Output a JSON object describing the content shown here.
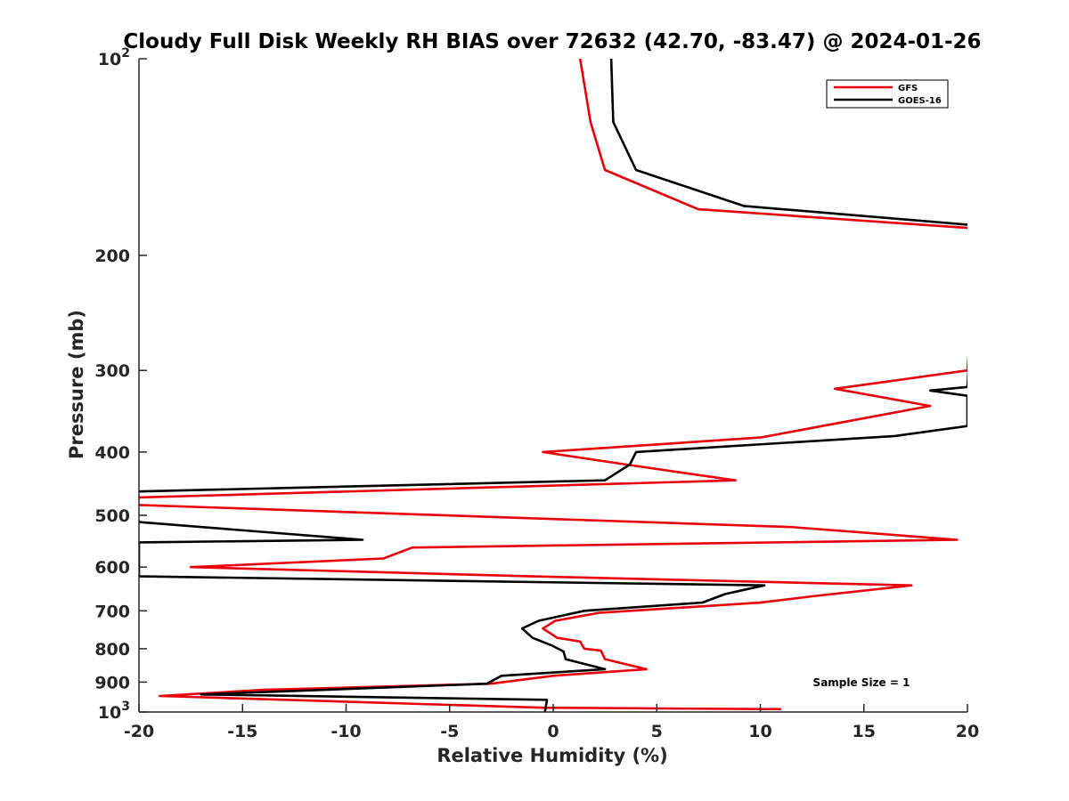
{
  "chart_data": {
    "type": "line",
    "title": "Cloudy Full Disk Weekly RH BIAS over 72632 (42.70, -83.47) @ 2024-01-26",
    "xlabel": "Relative Humidity (%)",
    "ylabel": "Pressure (mb)",
    "xlim": [
      -20,
      20
    ],
    "ylim": [
      100,
      1000
    ],
    "y_scale": "log",
    "y_reversed": true,
    "x_ticks": [
      "-20",
      "-15",
      "-10",
      "-5",
      "0",
      "5",
      "10",
      "15",
      "20"
    ],
    "y_ticks": [
      {
        "value": 100,
        "base": "10",
        "exp": "2"
      },
      {
        "value": 200,
        "label": "200"
      },
      {
        "value": 300,
        "label": "300"
      },
      {
        "value": 400,
        "label": "400"
      },
      {
        "value": 500,
        "label": "500"
      },
      {
        "value": 600,
        "label": "600"
      },
      {
        "value": 700,
        "label": "700"
      },
      {
        "value": 800,
        "label": "800"
      },
      {
        "value": 900,
        "label": "900"
      },
      {
        "value": 1000,
        "base": "10",
        "exp": "3"
      }
    ],
    "grid": false,
    "legend_position": "top-right",
    "annotation": "Sample Size = 1",
    "series": [
      {
        "name": "GFS",
        "color": "#e8000b",
        "points": [
          [
            1.3,
            100
          ],
          [
            1.8,
            125
          ],
          [
            2.5,
            148
          ],
          [
            7.0,
            170
          ],
          [
            20.5,
            182
          ],
          [
            20.0,
            300
          ],
          [
            13.6,
            320
          ],
          [
            18.2,
            340
          ],
          [
            10.0,
            380
          ],
          [
            -0.5,
            400
          ],
          [
            3.5,
            418
          ],
          [
            8.8,
            442
          ],
          [
            -20.5,
            470
          ],
          [
            -20.0,
            482
          ],
          [
            11.5,
            521
          ],
          [
            19.5,
            545
          ],
          [
            -6.8,
            560
          ],
          [
            -8.2,
            582
          ],
          [
            -17.5,
            600
          ],
          [
            -1.0,
            620
          ],
          [
            17.3,
            640
          ],
          [
            12.5,
            665
          ],
          [
            10.0,
            680
          ],
          [
            2.2,
            705
          ],
          [
            0.1,
            725
          ],
          [
            -0.5,
            745
          ],
          [
            0.2,
            770
          ],
          [
            1.3,
            780
          ],
          [
            1.5,
            800
          ],
          [
            2.3,
            805
          ],
          [
            2.5,
            830
          ],
          [
            4.5,
            860
          ],
          [
            0.0,
            880
          ],
          [
            -3.0,
            905
          ],
          [
            -14.0,
            925
          ],
          [
            -19.0,
            945
          ],
          [
            -0.5,
            985
          ],
          [
            11.0,
            990
          ]
        ]
      },
      {
        "name": "GOES-16",
        "color": "#000000",
        "points": [
          [
            2.8,
            100
          ],
          [
            2.9,
            125
          ],
          [
            4.0,
            148
          ],
          [
            9.2,
            168
          ],
          [
            20.5,
            180
          ],
          [
            20.0,
            318
          ],
          [
            18.2,
            322
          ],
          [
            20.0,
            328
          ],
          [
            20.0,
            365
          ],
          [
            16.5,
            378
          ],
          [
            4.0,
            400
          ],
          [
            3.7,
            418
          ],
          [
            2.5,
            442
          ],
          [
            -20.5,
            460
          ],
          [
            -20.0,
            512
          ],
          [
            -9.2,
            545
          ],
          [
            -20.0,
            550
          ],
          [
            -20.0,
            620
          ],
          [
            10.2,
            640
          ],
          [
            8.3,
            660
          ],
          [
            7.2,
            680
          ],
          [
            1.5,
            700
          ],
          [
            -0.7,
            725
          ],
          [
            -1.5,
            745
          ],
          [
            -1.0,
            770
          ],
          [
            -0.1,
            790
          ],
          [
            0.5,
            808
          ],
          [
            0.6,
            830
          ],
          [
            2.5,
            860
          ],
          [
            -2.5,
            880
          ],
          [
            -3.2,
            905
          ],
          [
            -17.0,
            940
          ],
          [
            -0.3,
            958
          ],
          [
            -0.4,
            1000
          ]
        ]
      }
    ]
  }
}
